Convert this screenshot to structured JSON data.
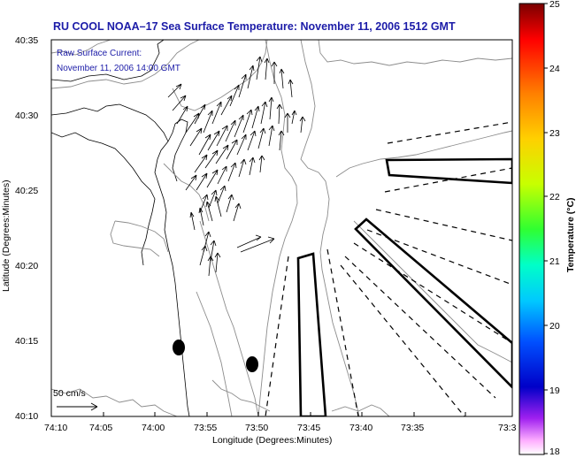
{
  "title": "RU COOL  NOAA–17  Sea Surface Temperature:  November 11, 2006 1512 GMT",
  "legend": {
    "line1": "Raw Surface Current:",
    "line2": "November 11, 2006 14:00 GMT"
  },
  "scale_label": "50 cm/s",
  "x_axis": {
    "label": "Longitude (Degrees:Minutes)",
    "ticks": [
      "74:10",
      "74:05",
      "74:00",
      "73:55",
      "73:50",
      "73:45",
      "73:40",
      "73:35",
      "73:3"
    ]
  },
  "y_axis": {
    "label": "Latitude (Degrees:Minutes)",
    "ticks": [
      "40:35",
      "40:30",
      "40:25",
      "40:20",
      "40:15",
      "40:10"
    ]
  },
  "colorbar": {
    "label": "Temperature (°C)",
    "ticks": [
      "25",
      "24",
      "23",
      "22",
      "21",
      "20",
      "19",
      "18"
    ],
    "colors": [
      "#7a0000",
      "#ff0000",
      "#ff8000",
      "#ffd000",
      "#c8ff00",
      "#30ff30",
      "#00ffc8",
      "#00c8ff",
      "#0050ff",
      "#0000c8",
      "#a020f0",
      "#ffb0ff",
      "#ffffff"
    ]
  }
}
